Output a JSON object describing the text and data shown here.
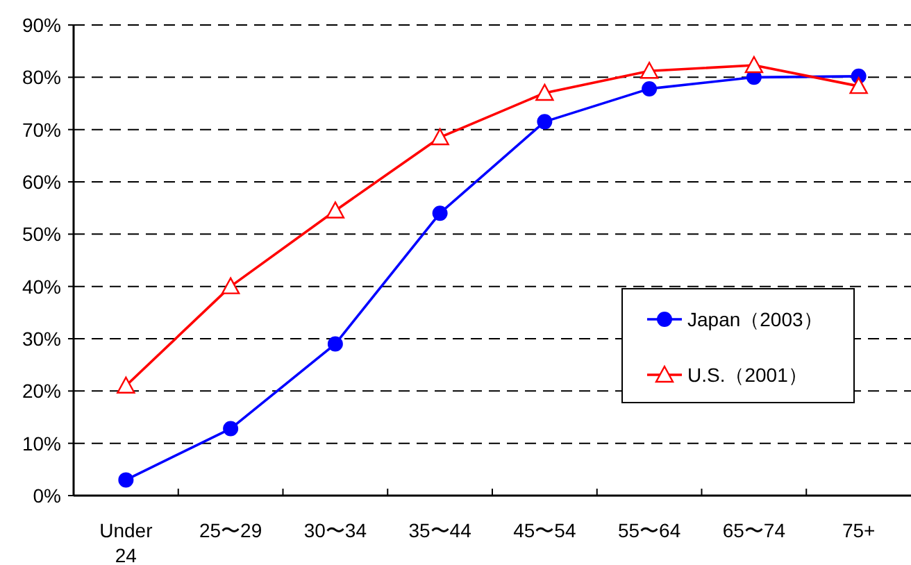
{
  "chart_data": {
    "type": "line",
    "categories": [
      "Under\n24",
      "25〜29",
      "30〜34",
      "35〜44",
      "45〜54",
      "55〜64",
      "65〜74",
      "75+"
    ],
    "series": [
      {
        "name": "Japan（2003）",
        "color": "#0000ff",
        "marker": "circle",
        "values": [
          3,
          12.8,
          29,
          54,
          71.5,
          77.8,
          80,
          80.2
        ]
      },
      {
        "name": "U.S.（2001）",
        "color": "#ff0000",
        "marker": "triangle",
        "values": [
          21,
          40,
          54.5,
          68.5,
          77,
          81.2,
          82.3,
          78.3
        ]
      }
    ],
    "ylim": [
      0,
      90
    ],
    "yticks": [
      {
        "value": 0,
        "label": "0%"
      },
      {
        "value": 10,
        "label": "10%"
      },
      {
        "value": 20,
        "label": "20%"
      },
      {
        "value": 30,
        "label": "30%"
      },
      {
        "value": 40,
        "label": "40%"
      },
      {
        "value": 50,
        "label": "50%"
      },
      {
        "value": 60,
        "label": "60%"
      },
      {
        "value": 70,
        "label": "70%"
      },
      {
        "value": 80,
        "label": "80%"
      },
      {
        "value": 90,
        "label": "90%"
      }
    ],
    "grid": "y",
    "legend": "right"
  }
}
